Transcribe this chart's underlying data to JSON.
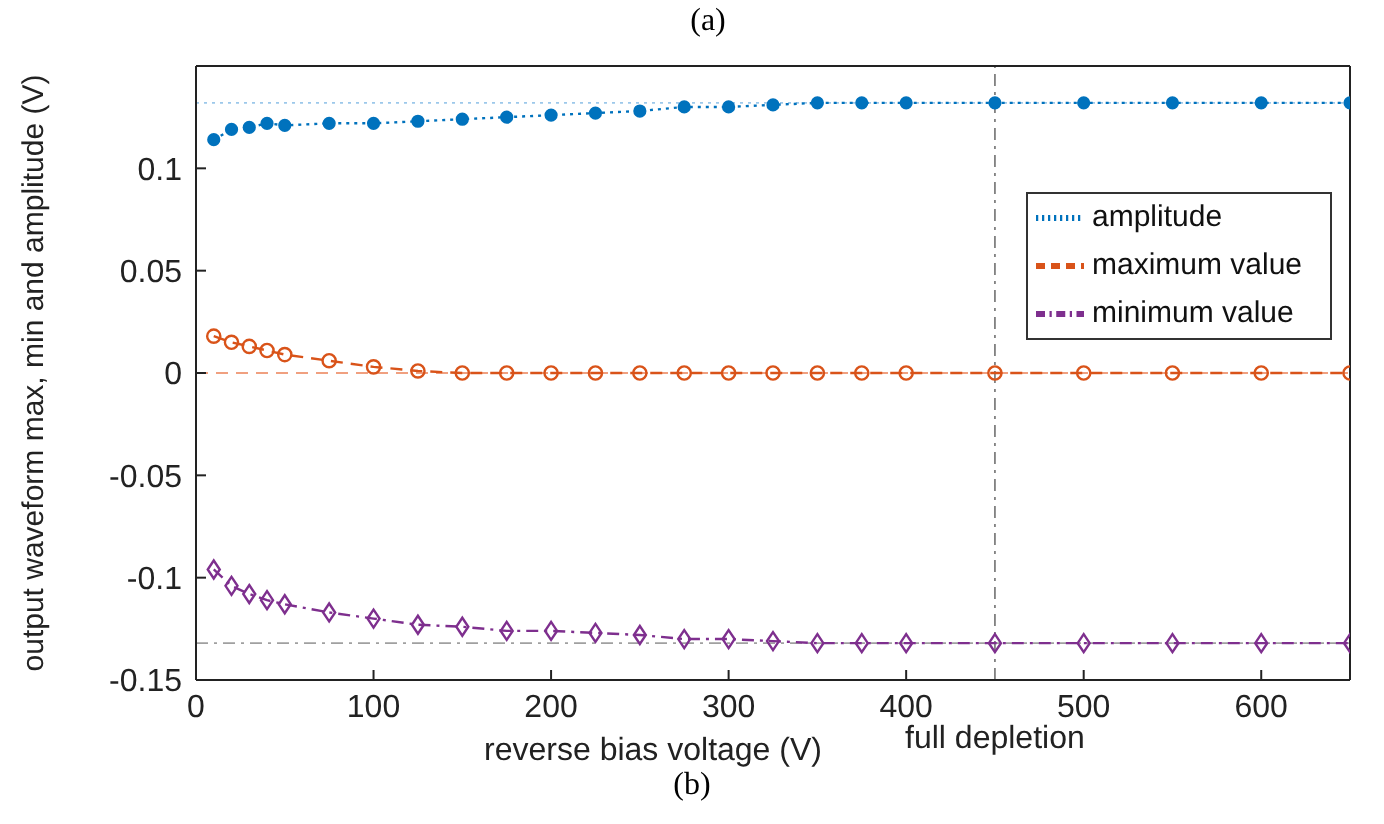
{
  "chart_data": {
    "type": "line",
    "xlabel": "reverse bias voltage (V)",
    "ylabel": "output waveform max, min and amplitude (V)",
    "annotations": [
      "(a)",
      "(b)"
    ],
    "x": [
      10,
      20,
      30,
      40,
      50,
      75,
      100,
      125,
      150,
      175,
      200,
      225,
      250,
      275,
      300,
      325,
      350,
      375,
      400,
      450,
      500,
      550,
      600,
      650
    ],
    "series": [
      {
        "name": "amplitude",
        "color": "#0072bd",
        "marker": "circle",
        "line_style": "dotted",
        "values": [
          0.114,
          0.119,
          0.12,
          0.122,
          0.121,
          0.122,
          0.122,
          0.123,
          0.124,
          0.125,
          0.126,
          0.127,
          0.128,
          0.13,
          0.13,
          0.131,
          0.132,
          0.132,
          0.132,
          0.132,
          0.132,
          0.132,
          0.132,
          0.132
        ]
      },
      {
        "name": "maximum value",
        "color": "#d95319",
        "marker": "open-circle",
        "line_style": "dashed",
        "values": [
          0.018,
          0.015,
          0.013,
          0.011,
          0.009,
          0.006,
          0.003,
          0.001,
          0,
          0,
          0,
          0,
          0,
          0,
          0,
          0,
          0,
          0,
          0,
          0,
          0,
          0,
          0,
          0
        ]
      },
      {
        "name": "minimum value",
        "color": "#7e2f8e",
        "marker": "diamond",
        "line_style": "dashdot",
        "values": [
          -0.096,
          -0.104,
          -0.108,
          -0.111,
          -0.113,
          -0.117,
          -0.12,
          -0.123,
          -0.124,
          -0.126,
          -0.126,
          -0.127,
          -0.128,
          -0.13,
          -0.13,
          -0.131,
          -0.132,
          -0.132,
          -0.132,
          -0.132,
          -0.132,
          -0.132,
          -0.132,
          -0.132
        ]
      }
    ],
    "xlim": [
      0,
      650
    ],
    "xticks": [
      0,
      100,
      200,
      300,
      400,
      500,
      600
    ],
    "ylim": [
      -0.15,
      0.15
    ],
    "yticks": [
      -0.15,
      -0.1,
      -0.05,
      0,
      0.05,
      0.1
    ],
    "ref_lines": [
      {
        "axis": "x",
        "value": 450,
        "label": "full depletion",
        "color": "#808080",
        "line_style": "dashdot"
      },
      {
        "axis": "y",
        "value": 0.132,
        "label": null,
        "color": "#9cc8ea",
        "line_style": "dotted"
      },
      {
        "axis": "y",
        "value": 0,
        "label": null,
        "color": "#f0a080",
        "line_style": "dashed"
      },
      {
        "axis": "y",
        "value": -0.132,
        "label": null,
        "color": "#a0a0a0",
        "line_style": "dashdot"
      }
    ],
    "grid": false,
    "legend": "right"
  }
}
